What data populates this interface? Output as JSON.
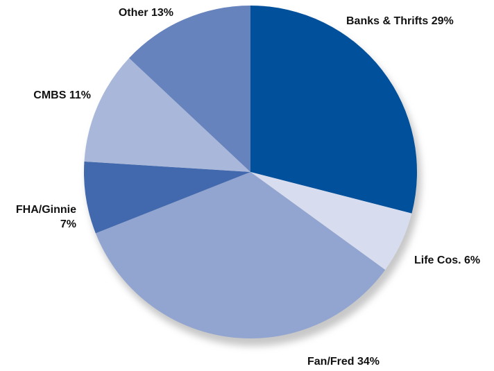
{
  "chart_data": {
    "type": "pie",
    "title": "",
    "slices": [
      {
        "label": "Banks & Thrifts",
        "value": 29,
        "display": "Banks & Thrifts 29%",
        "color": "#00509b"
      },
      {
        "label": "Life Cos.",
        "value": 6,
        "display": "Life Cos. 6%",
        "color": "#d7ddee"
      },
      {
        "label": "Fan/Fred",
        "value": 34,
        "display": "Fan/Fred 34%",
        "color": "#91a5d0"
      },
      {
        "label": "FHA/Ginnie",
        "value": 7,
        "display": "FHA/Ginnie 7%",
        "display_lines": [
          "FHA/Ginnie",
          "7%"
        ],
        "color": "#4269ad"
      },
      {
        "label": "CMBS",
        "value": 11,
        "display": "CMBS 11%",
        "color": "#a9b8da"
      },
      {
        "label": "Other",
        "value": 13,
        "display": "Other 13%",
        "color": "#6783be"
      }
    ],
    "start_angle": "12 o'clock",
    "direction": "clockwise",
    "legend": "none",
    "shadow": true
  }
}
